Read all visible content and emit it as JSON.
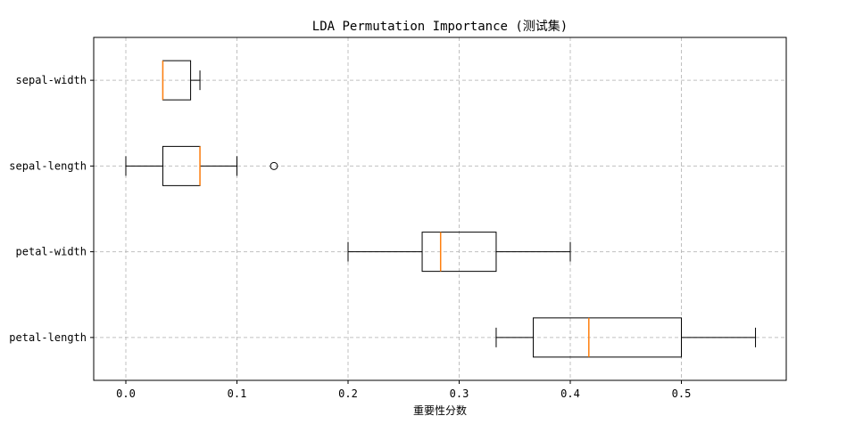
{
  "chart_data": {
    "type": "boxplot",
    "orientation": "horizontal",
    "title": "LDA Permutation Importance (测试集)",
    "xlabel": "重要性分数",
    "ylabel": "",
    "xlim": [
      -0.0283,
      0.595
    ],
    "xticks": [
      0.0,
      0.1,
      0.2,
      0.3,
      0.4,
      0.5
    ],
    "xtick_labels": [
      "0.0",
      "0.1",
      "0.2",
      "0.3",
      "0.4",
      "0.5"
    ],
    "grid": true,
    "categories": [
      "petal-length",
      "petal-width",
      "sepal-length",
      "sepal-width"
    ],
    "boxes": [
      {
        "name": "petal-length",
        "whisker_low": 0.3333,
        "q1": 0.3667,
        "median": 0.4167,
        "q3": 0.5,
        "whisker_high": 0.5667,
        "outliers": []
      },
      {
        "name": "petal-width",
        "whisker_low": 0.2,
        "q1": 0.2667,
        "median": 0.2833,
        "q3": 0.3333,
        "whisker_high": 0.4,
        "outliers": []
      },
      {
        "name": "sepal-length",
        "whisker_low": 0.0,
        "q1": 0.0333,
        "median": 0.0667,
        "q3": 0.0667,
        "whisker_high": 0.1,
        "outliers": [
          0.1333
        ]
      },
      {
        "name": "sepal-width",
        "whisker_low": 0.0333,
        "q1": 0.0333,
        "median": 0.0333,
        "q3": 0.0583,
        "whisker_high": 0.0667,
        "outliers": []
      }
    ],
    "colors": {
      "box": "#000000",
      "median": "#ff7f0e",
      "grid": "#b0b0b0"
    }
  }
}
